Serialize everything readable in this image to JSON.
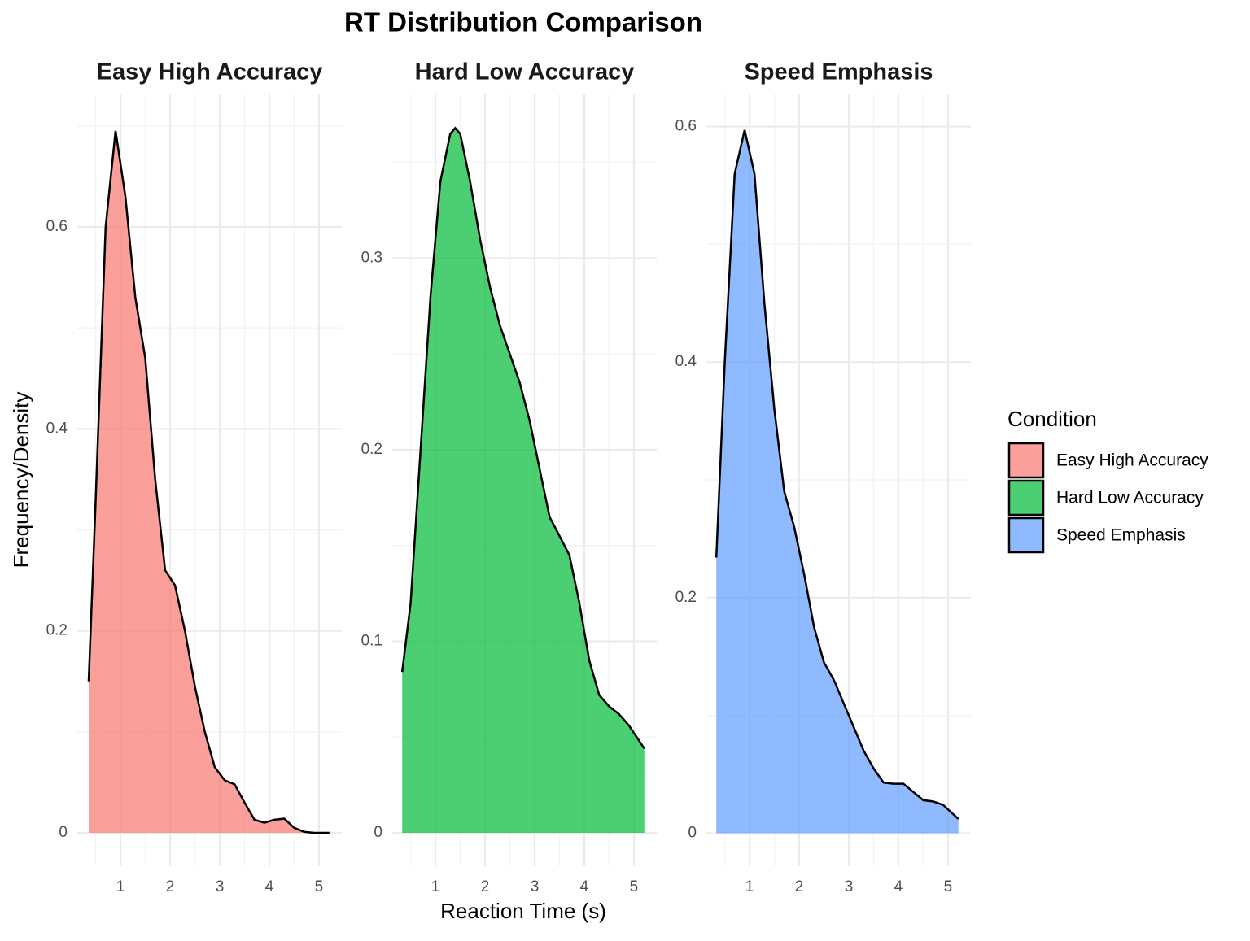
{
  "title": "RT Distribution Comparison",
  "x_label": "Reaction Time (s)",
  "y_label": "Frequency/Density",
  "legend": {
    "title": "Condition",
    "position": "right"
  },
  "chart_data": [
    {
      "type": "area",
      "title": "Easy High Accuracy",
      "color": "#F8766D",
      "x": [
        0.36,
        0.5,
        0.7,
        0.9,
        1.1,
        1.3,
        1.5,
        1.7,
        1.9,
        2.1,
        2.3,
        2.5,
        2.7,
        2.9,
        3.1,
        3.3,
        3.5,
        3.7,
        3.9,
        4.1,
        4.3,
        4.5,
        4.7,
        4.9,
        5.21
      ],
      "values": [
        0.15,
        0.33,
        0.6,
        0.695,
        0.63,
        0.53,
        0.47,
        0.35,
        0.26,
        0.245,
        0.2,
        0.145,
        0.1,
        0.065,
        0.052,
        0.048,
        0.03,
        0.013,
        0.01,
        0.013,
        0.014,
        0.005,
        0.001,
        0,
        0
      ],
      "xlim": [
        0.13,
        5.46
      ],
      "ylim": [
        -0.033,
        0.732
      ],
      "xticks": [
        1,
        2,
        3,
        4,
        5
      ],
      "yticks": [
        0.0,
        0.2,
        0.4,
        0.6
      ],
      "grid": true
    },
    {
      "type": "area",
      "title": "Hard Low Accuracy",
      "color": "#00BA38",
      "x": [
        0.33,
        0.5,
        0.7,
        0.9,
        1.1,
        1.3,
        1.4,
        1.5,
        1.7,
        1.9,
        2.1,
        2.3,
        2.5,
        2.7,
        2.9,
        3.1,
        3.3,
        3.5,
        3.7,
        3.9,
        4.1,
        4.3,
        4.5,
        4.7,
        4.9,
        5.21
      ],
      "values": [
        0.084,
        0.12,
        0.2,
        0.28,
        0.34,
        0.365,
        0.368,
        0.365,
        0.34,
        0.31,
        0.285,
        0.265,
        0.25,
        0.235,
        0.215,
        0.19,
        0.165,
        0.155,
        0.145,
        0.12,
        0.09,
        0.072,
        0.066,
        0.062,
        0.056,
        0.044
      ],
      "xlim": [
        0.13,
        5.46
      ],
      "ylim": [
        -0.0174,
        0.386
      ],
      "xticks": [
        1,
        2,
        3,
        4,
        5
      ],
      "yticks": [
        0.0,
        0.1,
        0.2,
        0.3
      ],
      "grid": true
    },
    {
      "type": "area",
      "title": "Speed Emphasis",
      "color": "#619CFF",
      "x": [
        0.33,
        0.5,
        0.7,
        0.9,
        1.1,
        1.3,
        1.5,
        1.7,
        1.9,
        2.1,
        2.3,
        2.5,
        2.7,
        2.9,
        3.1,
        3.3,
        3.5,
        3.7,
        3.9,
        4.1,
        4.3,
        4.5,
        4.7,
        4.9,
        5.21
      ],
      "values": [
        0.234,
        0.4,
        0.56,
        0.597,
        0.56,
        0.45,
        0.36,
        0.29,
        0.26,
        0.22,
        0.175,
        0.145,
        0.13,
        0.11,
        0.09,
        0.07,
        0.055,
        0.043,
        0.042,
        0.042,
        0.035,
        0.028,
        0.027,
        0.024,
        0.012
      ],
      "xlim": [
        0.13,
        5.46
      ],
      "ylim": [
        -0.028,
        0.628
      ],
      "xticks": [
        1,
        2,
        3,
        4,
        5
      ],
      "yticks": [
        0.0,
        0.2,
        0.4,
        0.6
      ],
      "grid": true
    }
  ]
}
